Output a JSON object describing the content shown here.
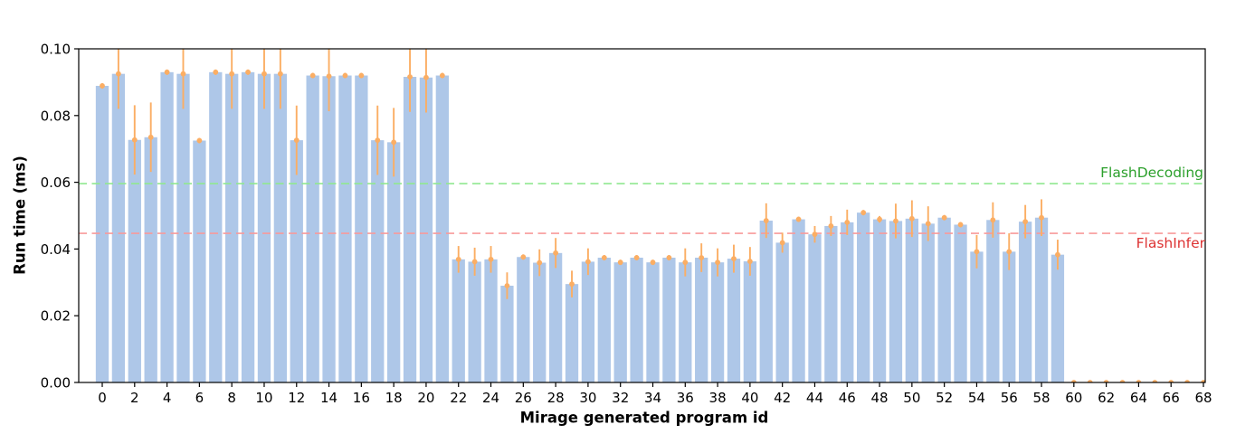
{
  "chart_data": {
    "type": "bar",
    "title": "",
    "xlabel": "Mirage generated program id",
    "ylabel": "Run time (ms)",
    "ylim": [
      0,
      0.1
    ],
    "ytick_labels": [
      "0.00",
      "0.02",
      "0.04",
      "0.06",
      "0.08",
      "0.10"
    ],
    "ytick_values": [
      0.0,
      0.02,
      0.04,
      0.06,
      0.08,
      0.1
    ],
    "xticks": [
      0,
      2,
      4,
      6,
      8,
      10,
      12,
      14,
      16,
      18,
      20,
      22,
      24,
      26,
      28,
      30,
      32,
      34,
      36,
      38,
      40,
      42,
      44,
      46,
      48,
      50,
      52,
      54,
      56,
      58,
      60,
      62,
      64,
      66,
      68
    ],
    "x": [
      0,
      1,
      2,
      3,
      4,
      5,
      6,
      7,
      8,
      9,
      10,
      11,
      12,
      13,
      14,
      15,
      16,
      17,
      18,
      19,
      20,
      21,
      22,
      23,
      24,
      25,
      26,
      27,
      28,
      29,
      30,
      31,
      32,
      33,
      34,
      35,
      36,
      37,
      38,
      39,
      40,
      41,
      42,
      43,
      44,
      45,
      46,
      47,
      48,
      49,
      50,
      51,
      52,
      53,
      54,
      55,
      56,
      57,
      58,
      59,
      60,
      61,
      62,
      63,
      64,
      65,
      66,
      67,
      68
    ],
    "values": [
      0.0889,
      0.0925,
      0.0727,
      0.0735,
      0.093,
      0.0925,
      0.0725,
      0.093,
      0.0925,
      0.093,
      0.0925,
      0.0925,
      0.0726,
      0.092,
      0.0918,
      0.092,
      0.092,
      0.0726,
      0.072,
      0.0916,
      0.0914,
      0.092,
      0.0369,
      0.0362,
      0.0369,
      0.029,
      0.0376,
      0.0359,
      0.0388,
      0.0295,
      0.0362,
      0.0374,
      0.036,
      0.0374,
      0.036,
      0.0374,
      0.036,
      0.0374,
      0.036,
      0.0371,
      0.0363,
      0.0485,
      0.0419,
      0.0489,
      0.0444,
      0.0469,
      0.048,
      0.0509,
      0.0489,
      0.0484,
      0.0491,
      0.0476,
      0.0494,
      0.0473,
      0.0392,
      0.0487,
      0.0392,
      0.0482,
      0.0494,
      0.0383,
      0,
      0,
      0,
      0,
      0,
      0,
      0,
      0,
      0
    ],
    "errors": [
      0.0008,
      0.0105,
      0.0104,
      0.0104,
      0.0008,
      0.0105,
      0.0008,
      0.0008,
      0.0105,
      0.0008,
      0.0105,
      0.0105,
      0.0104,
      0.0008,
      0.0105,
      0.0008,
      0.0008,
      0.0104,
      0.0103,
      0.0105,
      0.0105,
      0.0008,
      0.004,
      0.0042,
      0.004,
      0.004,
      0.0008,
      0.004,
      0.0045,
      0.004,
      0.004,
      0.0008,
      0.0008,
      0.0008,
      0.0008,
      0.0008,
      0.0042,
      0.0043,
      0.0042,
      0.0042,
      0.0043,
      0.0052,
      0.003,
      0.0008,
      0.0025,
      0.003,
      0.0038,
      0.0008,
      0.001,
      0.0052,
      0.0055,
      0.0052,
      0.0008,
      0.0008,
      0.005,
      0.0053,
      0.0055,
      0.005,
      0.0055,
      0.0045,
      0.0004,
      0.0004,
      0.0004,
      0.0004,
      0.0004,
      0.0004,
      0.0004,
      0.0004,
      0.0004
    ],
    "bar_color": "#aec7e8",
    "error_color": "#fbae64",
    "axis_color": "#000000",
    "hlines": [
      {
        "label": "FlashDecoding",
        "value": 0.0596,
        "line_color": "#90e890",
        "label_color": "#2ca02c"
      },
      {
        "label": "FlashInfer",
        "value": 0.0447,
        "line_color": "#f89a9a",
        "label_color": "#dd3333"
      }
    ],
    "legend_position": "none",
    "grid": false
  }
}
